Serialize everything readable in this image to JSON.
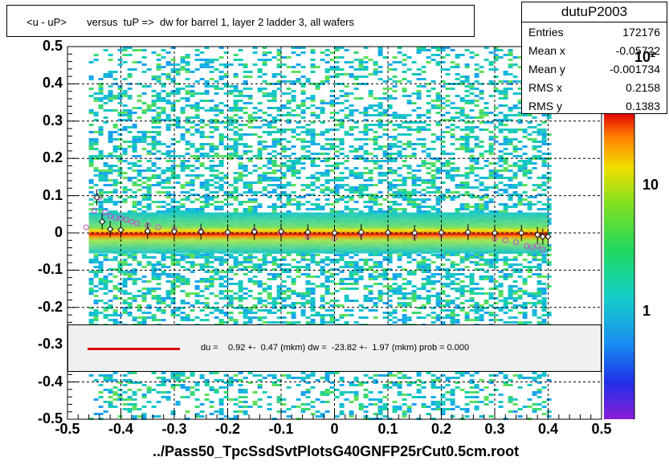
{
  "title": "<u - uP>       versus  tuP =>  dw for barrel 1, layer 2 ladder 3, all wafers",
  "stats": {
    "name": "dutuP2003",
    "rows": [
      {
        "label": "Entries",
        "value": "172176"
      },
      {
        "label": "Mean x",
        "value": "-0.05722"
      },
      {
        "label": "Mean y",
        "value": "-0.001734"
      },
      {
        "label": "RMS x",
        "value": "0.2158"
      },
      {
        "label": "RMS y",
        "value": "0.1383"
      }
    ]
  },
  "fit_text": "du =    0.92 +-  0.47 (mkm) dw =  -23.82 +-  1.97 (mkm) prob = 0.000",
  "colors": {
    "fit_line": "#e00000",
    "fit_box": "#f0f0f0",
    "profile_black": "#000000",
    "profile_magenta": "#cc44cc"
  },
  "chart_data": {
    "type": "heatmap",
    "xlabel": "../Pass50_TpcSsdSvtPlotsG40GNFP25rCut0.5cm.root",
    "ylabel": "",
    "xlim": [
      -0.5,
      0.5
    ],
    "ylim": [
      -0.5,
      0.5
    ],
    "x_ticks": [
      "-0.5",
      "-0.4",
      "-0.3",
      "-0.2",
      "-0.1",
      "0",
      "0.1",
      "0.2",
      "0.3",
      "0.4",
      "0.5"
    ],
    "y_ticks": [
      "-0.5",
      "-0.4",
      "-0.3",
      "-0.2",
      "-0.1",
      "0",
      "0.1",
      "0.2",
      "0.3",
      "0.4",
      "0.5"
    ],
    "color_ticks": [
      "1",
      "10",
      "10²"
    ],
    "color_scale": "log",
    "grid": true,
    "data_x_range": [
      -0.46,
      0.4
    ],
    "profile_black": {
      "x": [
        -0.445,
        -0.435,
        -0.42,
        -0.4,
        -0.35,
        -0.3,
        -0.25,
        -0.2,
        -0.15,
        -0.1,
        -0.05,
        0.0,
        0.05,
        0.1,
        0.15,
        0.2,
        0.25,
        0.3,
        0.35,
        0.38,
        0.39,
        0.4
      ],
      "y": [
        0.095,
        0.03,
        0.01,
        0.008,
        0.005,
        0.004,
        0.003,
        0.002,
        0.003,
        0.004,
        0.002,
        0.0,
        0.002,
        0.001,
        0.0,
        0.001,
        0.002,
        0.0,
        0.0,
        -0.005,
        -0.01,
        -0.01
      ]
    },
    "profile_magenta": {
      "x": [
        -0.465,
        -0.45,
        -0.44,
        -0.43,
        -0.42,
        -0.41,
        -0.4,
        -0.39,
        -0.38,
        -0.37,
        -0.35,
        -0.33,
        -0.3,
        -0.25,
        -0.2,
        -0.15,
        -0.1,
        -0.05,
        0.0,
        0.05,
        0.1,
        0.15,
        0.2,
        0.25,
        0.3,
        0.32,
        0.34,
        0.36,
        0.37,
        0.38,
        0.39
      ],
      "y": [
        0.015,
        0.06,
        0.095,
        0.055,
        0.045,
        0.04,
        0.04,
        0.035,
        0.03,
        0.025,
        0.02,
        0.015,
        0.01,
        0.005,
        0.0,
        0.005,
        0.0,
        -0.01,
        -0.015,
        -0.005,
        0.0,
        -0.01,
        -0.005,
        0.0,
        -0.015,
        -0.02,
        -0.025,
        -0.035,
        -0.04,
        -0.035,
        -0.045
      ]
    }
  }
}
